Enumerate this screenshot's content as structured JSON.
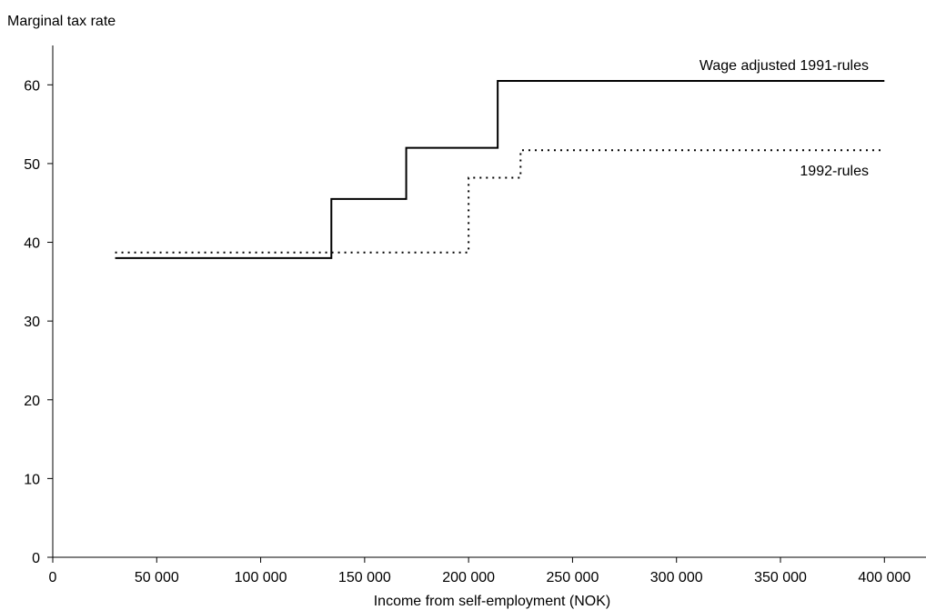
{
  "chart_data": {
    "type": "line",
    "step": true,
    "title": "",
    "ylabel": "Marginal tax rate",
    "xlabel": "Income from self-employment (NOK)",
    "xlim": [
      0,
      420000
    ],
    "ylim": [
      0,
      65
    ],
    "xticks": [
      0,
      50000,
      100000,
      150000,
      200000,
      250000,
      300000,
      350000,
      400000
    ],
    "xtick_labels": [
      "0",
      "50 000",
      "100 000",
      "150 000",
      "200 000",
      "250 000",
      "300 000",
      "350 000",
      "400 000"
    ],
    "yticks": [
      0,
      10,
      20,
      30,
      40,
      50,
      60
    ],
    "ytick_labels": [
      "0",
      "10",
      "20",
      "30",
      "40",
      "50",
      "60"
    ],
    "grid": false,
    "legend": "direct labels",
    "series": [
      {
        "name": "Wage adjusted 1991-rules",
        "style": "solid",
        "color": "#000000",
        "x": [
          30000,
          134000,
          134000,
          170000,
          170000,
          214000,
          214000,
          400000
        ],
        "y": [
          38.0,
          38.0,
          45.5,
          45.5,
          52.0,
          52.0,
          60.5,
          60.5
        ]
      },
      {
        "name": "1992-rules",
        "style": "dotted",
        "color": "#000000",
        "x": [
          30000,
          200000,
          200000,
          225000,
          225000,
          400000
        ],
        "y": [
          38.7,
          38.7,
          48.2,
          48.2,
          51.7,
          51.7
        ]
      }
    ]
  }
}
